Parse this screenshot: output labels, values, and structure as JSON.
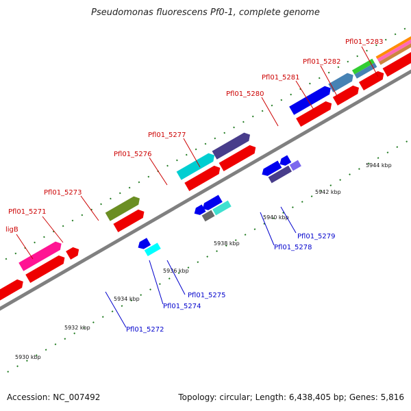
{
  "title": "Pseudomonas fluorescens Pf0-1, complete genome",
  "footer": {
    "accession": "Accession: NC_007492",
    "summary": "Topology: circular; Length: 6,438,405 bp; Genes: 5,816"
  },
  "colors": {
    "backbone": "#808080",
    "tick": "#1f7a1f",
    "label_top": "#cc0000",
    "label_bottom": "#0000cc"
  },
  "ticks": [
    "5930 kbp",
    "5932 kbp",
    "5934 kbp",
    "5936 kbp",
    "5938 kbp",
    "5940 kbp",
    "5942 kbp",
    "5944 kbp"
  ],
  "genes_top": [
    {
      "label": "ligB",
      "color": "#ff1493"
    },
    {
      "label": "Pfl01_5271",
      "color": "#ff1493"
    },
    {
      "label": "Pfl01_5273",
      "color": "#6b8e23"
    },
    {
      "label": "Pfl01_5276",
      "color": "#00ced1"
    },
    {
      "label": "Pfl01_5277",
      "color": "#483d8b"
    },
    {
      "label": "Pfl01_5280",
      "color": "#0000ee"
    },
    {
      "label": "Pfl01_5281",
      "color": "#4682b4"
    },
    {
      "label": "Pfl01_5282",
      "color": "#32cd32"
    },
    {
      "label": "Pfl01_5283",
      "color": "#ff8c00"
    }
  ],
  "genes_bottom": [
    {
      "label": "Pfl01_5272",
      "color": "#00ffff"
    },
    {
      "label": "Pfl01_5274",
      "color": "#696969"
    },
    {
      "label": "Pfl01_5275",
      "color": "#40e0d0"
    },
    {
      "label": "Pfl01_5278",
      "color": "#483d8b"
    },
    {
      "label": "Pfl01_5279",
      "color": "#7b68ee"
    }
  ]
}
